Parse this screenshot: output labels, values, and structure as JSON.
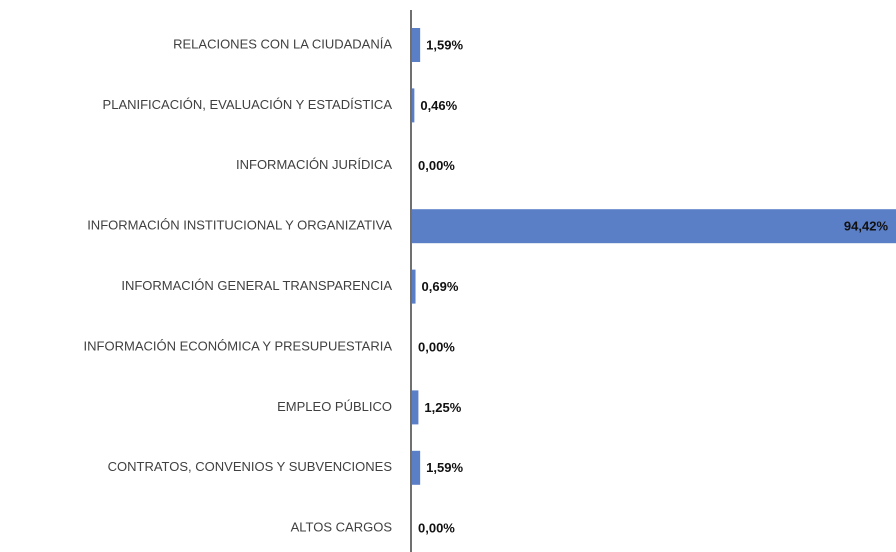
{
  "chart_data": {
    "type": "hbar",
    "categories": [
      "RELACIONES CON LA CIUDADANÍA",
      "PLANIFICACIÓN, EVALUACIÓN Y ESTADÍSTICA",
      "INFORMACIÓN JURÍDICA",
      "INFORMACIÓN INSTITUCIONAL Y ORGANIZATIVA",
      "INFORMACIÓN GENERAL TRANSPARENCIA",
      "INFORMACIÓN ECONÓMICA Y PRESUPUESTARIA",
      "EMPLEO PÚBLICO",
      "CONTRATOS, CONVENIOS Y SUBVENCIONES",
      "ALTOS CARGOS"
    ],
    "values": [
      1.59,
      0.46,
      0,
      94.42,
      0.69,
      0,
      1.25,
      1.59,
      0
    ],
    "value_labels": [
      "1,59%",
      "0,46%",
      "0,00%",
      "94,42%",
      "0,69%",
      "0,00%",
      "1,25%",
      "1,59%",
      "0,00%"
    ],
    "color": "#5b7fc7"
  }
}
